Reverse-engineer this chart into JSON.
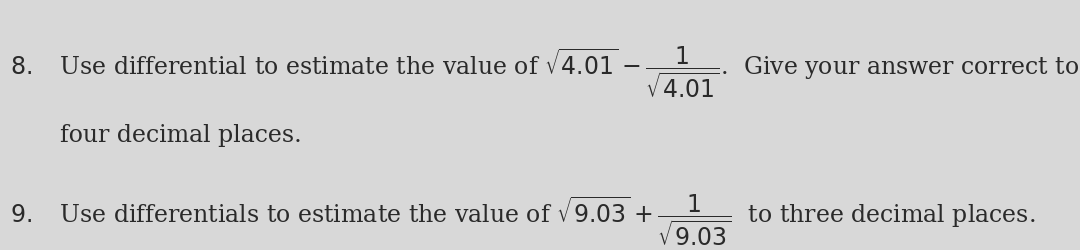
{
  "bg_color": "#d8d8d8",
  "text_color": "#2a2a2a",
  "q8_prefix": "8.   Use differential to estimate the value of ",
  "q8_middle": " − ",
  "q8_suffix": ".  Give your answer correct to",
  "q8_continuation": "four decimal places.",
  "q8_sqrt_arg1": "4.01",
  "q8_frac_num": "1",
  "q8_sqrt_arg2": "4.01",
  "q9_prefix": "9.   Use differentials to estimate the value of ",
  "q9_middle": " + ",
  "q9_suffix": "  to three decimal places.",
  "q9_sqrt_arg1": "9.03",
  "q9_frac_num": "1",
  "q9_sqrt_arg2": "9.03",
  "fontsize_main": 17,
  "fontsize_math": 17
}
